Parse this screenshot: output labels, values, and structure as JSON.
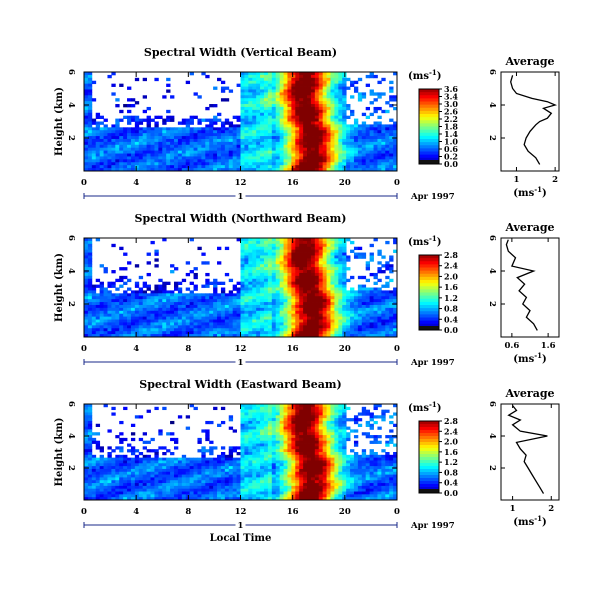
{
  "chart_data": [
    {
      "type": "heatmap",
      "title": "Spectral Width (Vertical Beam)",
      "ylabel": "Height (km)",
      "xticks": [
        "0",
        "4",
        "8",
        "12",
        "16",
        "20",
        "0"
      ],
      "yticks": [
        "6",
        "4",
        "2"
      ],
      "xlim": [
        0,
        24
      ],
      "ylim": [
        0,
        6
      ],
      "day_label": "1",
      "date_label": "Apr 1997",
      "colorbar": {
        "unit": "(ms",
        "unit_exp": "-1",
        "unit_close": ")",
        "ticks": [
          "3.6",
          "3.4",
          "3.0",
          "2.6",
          "2.2",
          "1.8",
          "1.4",
          "1.0",
          "0.6",
          "0.2",
          "0.0"
        ]
      },
      "average": {
        "title": "Average",
        "xlabel": "(ms",
        "xlabel_exp": "-1",
        "xlabel_close": ")",
        "xticks": [
          "1",
          "2"
        ],
        "xlim": [
          0.6,
          2.1
        ],
        "yticks": [
          "6",
          "4",
          "2"
        ],
        "profile": [
          [
            1.6,
            0.4
          ],
          [
            1.5,
            0.8
          ],
          [
            1.3,
            1.2
          ],
          [
            1.2,
            1.6
          ],
          [
            1.25,
            2.0
          ],
          [
            1.35,
            2.4
          ],
          [
            1.5,
            2.8
          ],
          [
            1.6,
            3.0
          ],
          [
            1.8,
            3.2
          ],
          [
            1.9,
            3.5
          ],
          [
            1.7,
            3.8
          ],
          [
            2.0,
            4.0
          ],
          [
            1.8,
            4.2
          ],
          [
            1.4,
            4.4
          ],
          [
            1.0,
            4.7
          ],
          [
            0.9,
            5.0
          ],
          [
            0.85,
            5.4
          ],
          [
            0.9,
            5.8
          ]
        ]
      }
    },
    {
      "type": "heatmap",
      "title": "Spectral Width (Northward Beam)",
      "ylabel": "Height (km)",
      "xticks": [
        "0",
        "4",
        "8",
        "12",
        "16",
        "20",
        "0"
      ],
      "yticks": [
        "6",
        "4",
        "2"
      ],
      "xlim": [
        0,
        24
      ],
      "ylim": [
        0,
        6
      ],
      "day_label": "1",
      "date_label": "Apr 1997",
      "colorbar": {
        "unit": "(ms",
        "unit_exp": "-1",
        "unit_close": ")",
        "ticks": [
          "2.8",
          "2.4",
          "2.0",
          "1.6",
          "1.2",
          "0.8",
          "0.4",
          "0.0"
        ]
      },
      "average": {
        "title": "Average",
        "xlabel": "(ms",
        "xlabel_exp": "-1",
        "xlabel_close": ")",
        "xticks": [
          "0.6",
          "1.6"
        ],
        "xlim": [
          0.3,
          1.9
        ],
        "yticks": [
          "6",
          "4",
          "2"
        ],
        "profile": [
          [
            1.3,
            0.4
          ],
          [
            1.2,
            0.8
          ],
          [
            1.0,
            1.2
          ],
          [
            1.1,
            1.6
          ],
          [
            0.9,
            2.0
          ],
          [
            1.0,
            2.4
          ],
          [
            0.8,
            2.8
          ],
          [
            0.95,
            3.2
          ],
          [
            0.75,
            3.6
          ],
          [
            1.2,
            4.0
          ],
          [
            0.6,
            4.3
          ],
          [
            0.7,
            4.8
          ],
          [
            0.5,
            5.2
          ],
          [
            0.45,
            5.6
          ],
          [
            0.5,
            5.9
          ]
        ]
      }
    },
    {
      "type": "heatmap",
      "title": "Spectral Width (Eastward Beam)",
      "ylabel": "Height (km)",
      "xlabel": "Local Time",
      "xticks": [
        "0",
        "4",
        "8",
        "12",
        "16",
        "20",
        "0"
      ],
      "yticks": [
        "6",
        "4",
        "2"
      ],
      "xlim": [
        0,
        24
      ],
      "ylim": [
        0,
        6
      ],
      "day_label": "1",
      "date_label": "Apr 1997",
      "colorbar": {
        "unit": "(ms",
        "unit_exp": "-1",
        "unit_close": ")",
        "ticks": [
          "2.8",
          "2.4",
          "2.0",
          "1.6",
          "1.2",
          "0.8",
          "0.4",
          "0.0"
        ]
      },
      "average": {
        "title": "Average",
        "xlabel": "(ms",
        "xlabel_exp": "-1",
        "xlabel_close": ")",
        "xticks": [
          "1",
          "2"
        ],
        "xlim": [
          0.7,
          2.2
        ],
        "yticks": [
          "6",
          "4",
          "2"
        ],
        "profile": [
          [
            1.8,
            0.4
          ],
          [
            1.7,
            0.8
          ],
          [
            1.6,
            1.2
          ],
          [
            1.5,
            1.6
          ],
          [
            1.4,
            2.0
          ],
          [
            1.3,
            2.4
          ],
          [
            1.35,
            2.8
          ],
          [
            1.2,
            3.2
          ],
          [
            1.1,
            3.6
          ],
          [
            1.9,
            4.0
          ],
          [
            1.2,
            4.3
          ],
          [
            1.0,
            4.7
          ],
          [
            1.2,
            5.0
          ],
          [
            0.9,
            5.3
          ],
          [
            1.1,
            5.6
          ],
          [
            1.0,
            5.9
          ]
        ]
      }
    }
  ]
}
